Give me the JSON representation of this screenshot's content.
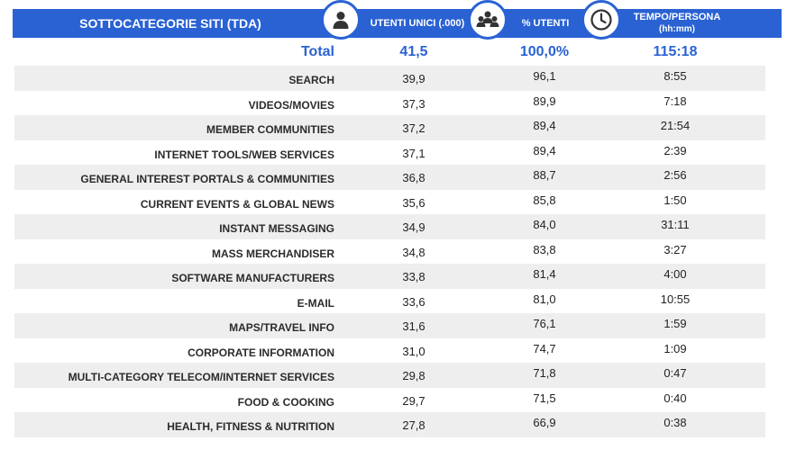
{
  "header": {
    "category": "SOTTOCATEGORIE SITI  (TDA)",
    "users": "UTENTI UNICI (.000)",
    "pct": "% UTENTI",
    "time": "TEMPO/PERSONA",
    "time_unit": "(hh:mm)"
  },
  "total": {
    "label": "Total",
    "users": "41,5",
    "pct": "100,0%",
    "time": "115:18"
  },
  "rows": [
    {
      "label": "SEARCH",
      "users": "39,9",
      "pct": "96,1",
      "time": "8:55"
    },
    {
      "label": "VIDEOS/MOVIES",
      "users": "37,3",
      "pct": "89,9",
      "time": "7:18"
    },
    {
      "label": "MEMBER COMMUNITIES",
      "users": "37,2",
      "pct": "89,4",
      "time": "21:54"
    },
    {
      "label": "INTERNET TOOLS/WEB SERVICES",
      "users": "37,1",
      "pct": "89,4",
      "time": "2:39"
    },
    {
      "label": "GENERAL INTEREST PORTALS & COMMUNITIES",
      "users": "36,8",
      "pct": "88,7",
      "time": "2:56"
    },
    {
      "label": "CURRENT EVENTS & GLOBAL NEWS",
      "users": "35,6",
      "pct": "85,8",
      "time": "1:50"
    },
    {
      "label": "INSTANT MESSAGING",
      "users": "34,9",
      "pct": "84,0",
      "time": "31:11"
    },
    {
      "label": "MASS MERCHANDISER",
      "users": "34,8",
      "pct": "83,8",
      "time": "3:27"
    },
    {
      "label": "SOFTWARE MANUFACTURERS",
      "users": "33,8",
      "pct": "81,4",
      "time": "4:00"
    },
    {
      "label": "E-MAIL",
      "users": "33,6",
      "pct": "81,0",
      "time": "10:55"
    },
    {
      "label": "MAPS/TRAVEL INFO",
      "users": "31,6",
      "pct": "76,1",
      "time": "1:59"
    },
    {
      "label": "CORPORATE INFORMATION",
      "users": "31,0",
      "pct": "74,7",
      "time": "1:09"
    },
    {
      "label": "MULTI-CATEGORY TELECOM/INTERNET SERVICES",
      "users": "29,8",
      "pct": "71,8",
      "time": "0:47"
    },
    {
      "label": "FOOD & COOKING",
      "users": "29,7",
      "pct": "71,5",
      "time": "0:40"
    },
    {
      "label": "HEALTH, FITNESS & NUTRITION",
      "users": "27,8",
      "pct": "66,9",
      "time": "0:38"
    }
  ],
  "icons": {
    "users": "user-icon",
    "pct": "group-icon",
    "time": "clock-icon"
  },
  "colors": {
    "accent": "#2a62d4",
    "row_stripe": "#eeeeee",
    "icon": "#333333"
  },
  "chart_data": {
    "type": "table",
    "columns": [
      "SOTTOCATEGORIE SITI  (TDA)",
      "UTENTI UNICI (.000)",
      "% UTENTI",
      "TEMPO/PERSONA (hh:mm)"
    ],
    "total": [
      "Total",
      41.5,
      100.0,
      "115:18"
    ],
    "rows": [
      [
        "SEARCH",
        39.9,
        96.1,
        "8:55"
      ],
      [
        "VIDEOS/MOVIES",
        37.3,
        89.9,
        "7:18"
      ],
      [
        "MEMBER COMMUNITIES",
        37.2,
        89.4,
        "21:54"
      ],
      [
        "INTERNET TOOLS/WEB SERVICES",
        37.1,
        89.4,
        "2:39"
      ],
      [
        "GENERAL INTEREST PORTALS & COMMUNITIES",
        36.8,
        88.7,
        "2:56"
      ],
      [
        "CURRENT EVENTS & GLOBAL NEWS",
        35.6,
        85.8,
        "1:50"
      ],
      [
        "INSTANT MESSAGING",
        34.9,
        84.0,
        "31:11"
      ],
      [
        "MASS MERCHANDISER",
        34.8,
        83.8,
        "3:27"
      ],
      [
        "SOFTWARE MANUFACTURERS",
        33.8,
        81.4,
        "4:00"
      ],
      [
        "E-MAIL",
        33.6,
        81.0,
        "10:55"
      ],
      [
        "MAPS/TRAVEL INFO",
        31.6,
        76.1,
        "1:59"
      ],
      [
        "CORPORATE INFORMATION",
        31.0,
        74.7,
        "1:09"
      ],
      [
        "MULTI-CATEGORY TELECOM/INTERNET SERVICES",
        29.8,
        71.8,
        "0:47"
      ],
      [
        "FOOD & COOKING",
        29.7,
        71.5,
        "0:40"
      ],
      [
        "HEALTH, FITNESS & NUTRITION",
        27.8,
        66.9,
        "0:38"
      ]
    ]
  }
}
